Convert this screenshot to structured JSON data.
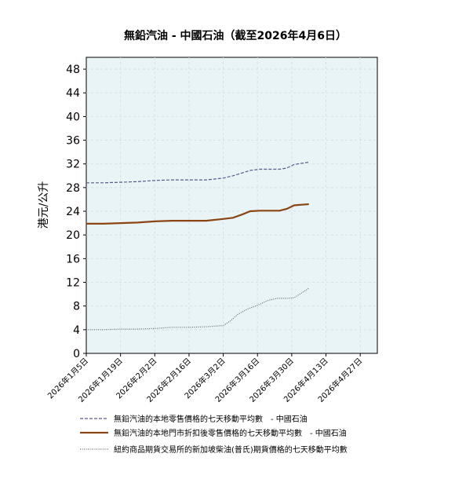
{
  "chart_data": {
    "type": "line",
    "title": "無鉛汽油 - 中國石油（截至2026年4月6日）",
    "ylabel": "港元/公升",
    "xlabel": "",
    "ylim": [
      0,
      50
    ],
    "yticks": [
      0,
      4,
      8,
      12,
      16,
      20,
      24,
      28,
      32,
      36,
      40,
      44,
      48
    ],
    "xlim": [
      "2026-01-05",
      "2026-05-04"
    ],
    "xticks": [
      "2026年1月5日",
      "2026年1月19日",
      "2026年2月2日",
      "2026年2月16日",
      "2026年3月2日",
      "2026年3月16日",
      "2026年3月30日",
      "2026年4月13日",
      "2026年4月27日"
    ],
    "xtick_dates": [
      "2026-01-05",
      "2026-01-19",
      "2026-02-02",
      "2026-02-16",
      "2026-03-02",
      "2026-03-16",
      "2026-03-30",
      "2026-04-13",
      "2026-04-27"
    ],
    "grid": true,
    "legend_position": "bottom",
    "plot_bg": "#e9f4f7",
    "series": [
      {
        "name": "無鉛汽油的本地零售價格的七天移動平均數　- 中國石油",
        "color": "#5a5a8a",
        "style": "dashed",
        "points": [
          [
            "2026-01-05",
            28.8
          ],
          [
            "2026-01-12",
            28.8
          ],
          [
            "2026-01-19",
            28.9
          ],
          [
            "2026-01-26",
            29.0
          ],
          [
            "2026-02-02",
            29.2
          ],
          [
            "2026-02-09",
            29.3
          ],
          [
            "2026-02-16",
            29.3
          ],
          [
            "2026-02-23",
            29.3
          ],
          [
            "2026-03-02",
            29.6
          ],
          [
            "2026-03-06",
            30.0
          ],
          [
            "2026-03-10",
            30.5
          ],
          [
            "2026-03-13",
            30.9
          ],
          [
            "2026-03-17",
            31.1
          ],
          [
            "2026-03-21",
            31.1
          ],
          [
            "2026-03-25",
            31.1
          ],
          [
            "2026-03-28",
            31.3
          ],
          [
            "2026-03-31",
            31.9
          ],
          [
            "2026-04-03",
            32.1
          ],
          [
            "2026-04-06",
            32.3
          ]
        ]
      },
      {
        "name": "無鉛汽油的本地門市折扣後零售價格的七天移動平均數　- 中國石油",
        "color": "#8b4513",
        "style": "solid",
        "points": [
          [
            "2026-01-05",
            21.9
          ],
          [
            "2026-01-12",
            21.9
          ],
          [
            "2026-01-19",
            22.0
          ],
          [
            "2026-01-26",
            22.1
          ],
          [
            "2026-02-02",
            22.3
          ],
          [
            "2026-02-09",
            22.4
          ],
          [
            "2026-02-16",
            22.4
          ],
          [
            "2026-02-23",
            22.4
          ],
          [
            "2026-03-02",
            22.7
          ],
          [
            "2026-03-06",
            22.9
          ],
          [
            "2026-03-10",
            23.5
          ],
          [
            "2026-03-13",
            24.0
          ],
          [
            "2026-03-17",
            24.1
          ],
          [
            "2026-03-21",
            24.1
          ],
          [
            "2026-03-25",
            24.1
          ],
          [
            "2026-03-28",
            24.4
          ],
          [
            "2026-03-31",
            25.0
          ],
          [
            "2026-04-03",
            25.1
          ],
          [
            "2026-04-06",
            25.2
          ]
        ]
      },
      {
        "name": "紐約商品期貨交易所的新加坡柴油(普氏)期貨價格的七天移動平均數",
        "color": "#6a6a7a",
        "style": "dotted",
        "points": [
          [
            "2026-01-05",
            4.0
          ],
          [
            "2026-01-12",
            4.0
          ],
          [
            "2026-01-19",
            4.1
          ],
          [
            "2026-01-26",
            4.1
          ],
          [
            "2026-02-02",
            4.2
          ],
          [
            "2026-02-09",
            4.4
          ],
          [
            "2026-02-16",
            4.4
          ],
          [
            "2026-02-23",
            4.5
          ],
          [
            "2026-03-02",
            4.7
          ],
          [
            "2026-03-05",
            5.5
          ],
          [
            "2026-03-08",
            6.6
          ],
          [
            "2026-03-12",
            7.5
          ],
          [
            "2026-03-16",
            8.1
          ],
          [
            "2026-03-20",
            8.9
          ],
          [
            "2026-03-24",
            9.3
          ],
          [
            "2026-03-28",
            9.3
          ],
          [
            "2026-03-31",
            9.4
          ],
          [
            "2026-04-03",
            10.2
          ],
          [
            "2026-04-06",
            11.0
          ]
        ]
      }
    ]
  }
}
